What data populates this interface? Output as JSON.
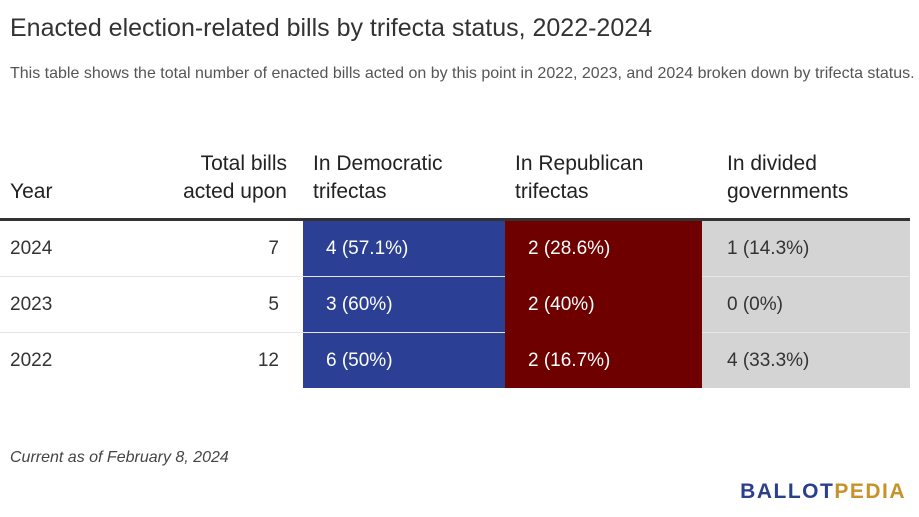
{
  "title": "Enacted election-related bills by trifecta status, 2022-2024",
  "subtitle": "This table shows the total number of enacted bills acted on by this point in 2022, 2023, and 2024 broken down by trifecta status.",
  "note": "Current as of February 8, 2024",
  "logo": {
    "part1": "BALLOT",
    "part2": "PEDIA"
  },
  "colors": {
    "democratic": "#2b3f95",
    "republican": "#6e0000",
    "divided": "#d4d4d4",
    "logo_blue": "#2b3f8f",
    "logo_gold": "#c8922a"
  },
  "chart_data": {
    "type": "table",
    "columns": [
      "Year",
      "Total bills acted upon",
      "In Democratic trifectas",
      "In Republican trifectas",
      "In divided governments"
    ],
    "rows": [
      {
        "year": "2024",
        "total": "7",
        "dem": "4 (57.1%)",
        "rep": "2 (28.6%)",
        "div": "1 (14.3%)"
      },
      {
        "year": "2023",
        "total": "5",
        "dem": "3 (60%)",
        "rep": "2 (40%)",
        "div": "0 (0%)"
      },
      {
        "year": "2022",
        "total": "12",
        "dem": "6 (50%)",
        "rep": "2 (16.7%)",
        "div": "4 (33.3%)"
      }
    ]
  }
}
